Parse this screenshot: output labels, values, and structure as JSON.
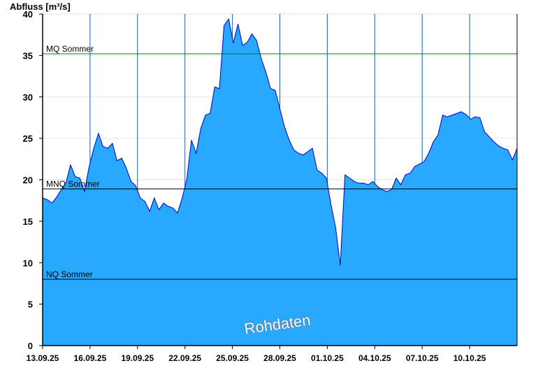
{
  "chart_data": {
    "type": "area",
    "ylabel": "Abfluss [m³/s]",
    "ylim": [
      0,
      40
    ],
    "yticks": [
      0,
      5,
      10,
      15,
      20,
      25,
      30,
      35,
      40
    ],
    "xlim": [
      "13.09.25",
      "13.10.25"
    ],
    "xtick_labels": [
      "13.09.25",
      "16.09.25",
      "19.09.25",
      "22.09.25",
      "25.09.25",
      "28.09.25",
      "01.10.25",
      "04.10.25",
      "07.10.25",
      "10.10.25"
    ],
    "grid": true,
    "colors": {
      "fill": "#29a8ff",
      "line": "#0000cc",
      "mq_line": "#008000",
      "ref_line": "#000000"
    },
    "reference_lines": [
      {
        "label": "MQ Sommer",
        "value": 35.2
      },
      {
        "label": "MNQ Sommer",
        "value": 18.9
      },
      {
        "label": "NQ Sommer",
        "value": 8.0
      }
    ],
    "watermark": "Rohdaten",
    "series": [
      {
        "x": [
          "13.09.25",
          "13.09.25",
          "13.09.25",
          "13.09.25",
          "14.09.25",
          "14.09.25",
          "14.09.25",
          "15.09.25",
          "15.09.25",
          "15.09.25",
          "16.09.25",
          "16.09.25",
          "16.09.25",
          "16.09.25",
          "17.09.25",
          "17.09.25",
          "17.09.25",
          "18.09.25",
          "18.09.25",
          "18.09.25",
          "19.09.25",
          "19.09.25",
          "19.09.25",
          "19.09.25",
          "20.09.25",
          "20.09.25",
          "20.09.25",
          "21.09.25",
          "21.09.25",
          "21.09.25",
          "22.09.25",
          "22.09.25",
          "22.09.25",
          "22.09.25",
          "23.09.25",
          "23.09.25",
          "23.09.25",
          "24.09.25",
          "24.09.25",
          "24.09.25",
          "25.09.25",
          "25.09.25",
          "25.09.25",
          "25.09.25",
          "26.09.25",
          "26.09.25",
          "26.09.25",
          "27.09.25",
          "27.09.25",
          "27.09.25",
          "28.09.25",
          "28.09.25",
          "28.09.25",
          "28.09.25",
          "29.09.25",
          "29.09.25",
          "29.09.25",
          "30.09.25",
          "30.09.25",
          "30.09.25",
          "01.10.25",
          "01.10.25",
          "01.10.25",
          "01.10.25",
          "01.10.25",
          "02.10.25",
          "02.10.25",
          "02.10.25",
          "02.10.25",
          "03.10.25",
          "03.10.25",
          "03.10.25",
          "04.10.25",
          "04.10.25",
          "04.10.25",
          "04.10.25",
          "05.10.25",
          "05.10.25",
          "05.10.25",
          "06.10.25",
          "06.10.25",
          "06.10.25",
          "07.10.25",
          "07.10.25",
          "07.10.25",
          "07.10.25",
          "08.10.25",
          "08.10.25",
          "08.10.25",
          "09.10.25",
          "09.10.25",
          "09.10.25",
          "10.10.25",
          "10.10.25",
          "10.10.25",
          "10.10.25",
          "11.10.25",
          "11.10.25",
          "11.10.25",
          "12.10.25",
          "12.10.25",
          "12.10.25",
          "13.10.25"
        ],
        "y": [
          17.8,
          17.6,
          17.2,
          17.9,
          18.8,
          19.6,
          21.8,
          20.4,
          20.2,
          18.6,
          21.6,
          23.8,
          25.6,
          24.0,
          23.8,
          24.4,
          22.3,
          22.6,
          21.4,
          19.8,
          19.3,
          17.8,
          17.4,
          16.2,
          17.8,
          16.4,
          17.2,
          16.8,
          16.6,
          16.0,
          17.8,
          20.1,
          24.8,
          23.2,
          26.2,
          27.8,
          28.0,
          31.2,
          31.0,
          38.6,
          39.4,
          36.5,
          38.8,
          36.2,
          36.6,
          37.6,
          36.8,
          34.6,
          33.0,
          31.0,
          30.8,
          28.6,
          26.4,
          24.8,
          23.6,
          23.2,
          23.0,
          23.4,
          23.8,
          21.2,
          20.8,
          20.2,
          17.0,
          14.2,
          9.7,
          20.6,
          20.2,
          19.8,
          19.6,
          19.6,
          19.4,
          19.8,
          19.2,
          18.8,
          18.6,
          18.8,
          20.2,
          19.4,
          20.6,
          20.8,
          21.6,
          21.9,
          22.2,
          23.2,
          24.6,
          25.4,
          27.8,
          27.6,
          27.8,
          28.0,
          28.2,
          27.9,
          27.3,
          27.6,
          27.5,
          25.8,
          25.2,
          24.6,
          24.1,
          23.8,
          23.6,
          22.4,
          23.8
        ]
      }
    ]
  }
}
